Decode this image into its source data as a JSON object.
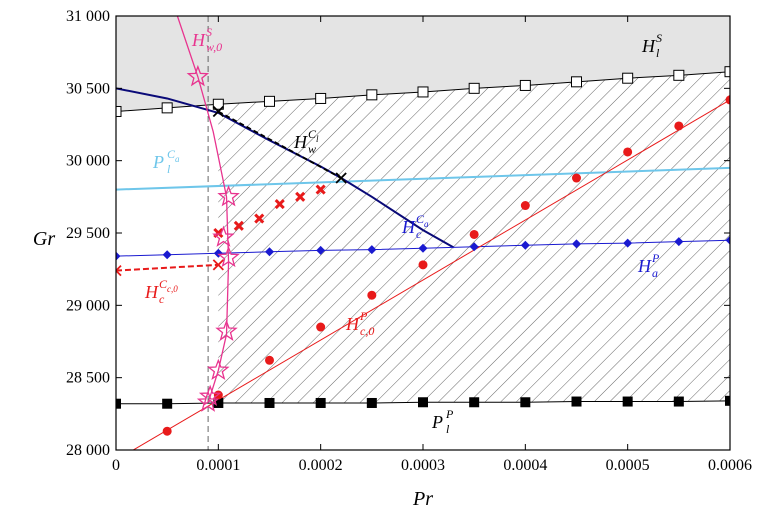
{
  "chart_data": {
    "type": "line",
    "xlabel": "Pr",
    "ylabel": "Gr",
    "xlim": [
      0,
      0.0006
    ],
    "ylim": [
      28000,
      31000
    ],
    "x_ticks": [
      0,
      0.0001,
      0.0002,
      0.0003,
      0.0004,
      0.0005,
      0.0006
    ],
    "x_tick_labels": [
      "0",
      "0.0001",
      "0.0002",
      "0.0003",
      "0.0004",
      "0.0005",
      "0.0006"
    ],
    "y_ticks": [
      28000,
      28500,
      29000,
      29500,
      30000,
      30500,
      31000
    ],
    "y_tick_labels": [
      "28 000",
      "28 500",
      "29 000",
      "29 500",
      "30 000",
      "30 500",
      "31 000"
    ],
    "grid": false,
    "legend": "none",
    "reference_line_x": 9e-05,
    "colors": {
      "pink": "#e8348f",
      "red": "#e81a1a",
      "blue": "#1a1ad0",
      "navy": "#0a0a78",
      "lightblue": "#6ec6ea",
      "black": "#000000",
      "shade": "#e4e4e4"
    },
    "annotations": {
      "HlS": {
        "main": "H",
        "sup": "S",
        "sub": "l"
      },
      "HwS0": {
        "main": "H",
        "sup": "S",
        "sub": "w,0"
      },
      "HwCl": {
        "main": "H",
        "sup": "C",
        "sup_sub": "l",
        "sub": "w"
      },
      "PlCa": {
        "main": "P",
        "sup": "C",
        "sup_sub": "a",
        "sub": "l"
      },
      "HcCa": {
        "main": "H",
        "sup": "C",
        "sup_sub": "a",
        "sub": "c"
      },
      "HaP": {
        "main": "H",
        "sup": "P",
        "sub": "a"
      },
      "HcCc0": {
        "main": "H",
        "sup": "C",
        "sup_sub": "c,0",
        "sub": "c"
      },
      "Hc0P": {
        "main": "H",
        "sup": "P",
        "sub": "c,0"
      },
      "PlP": {
        "main": "P",
        "sup": "P",
        "sub": "l"
      }
    },
    "series": [
      {
        "key": "HlS",
        "marker": "open-square",
        "color": "#000000",
        "x": [
          0,
          5e-05,
          0.0001,
          0.00015,
          0.0002,
          0.00025,
          0.0003,
          0.00035,
          0.0004,
          0.00045,
          0.0005,
          0.00055,
          0.0006
        ],
        "y": [
          30340,
          30365,
          30390,
          30410,
          30430,
          30455,
          30475,
          30500,
          30520,
          30545,
          30570,
          30590,
          30615
        ]
      },
      {
        "key": "HwS0",
        "marker": "open-star",
        "color": "#e8348f",
        "x": [
          8e-05,
          0.00011,
          0.000105,
          0.00011,
          0.000108,
          0.0001,
          9.2e-05,
          9e-05
        ],
        "y": [
          30580,
          29750,
          29470,
          29330,
          28820,
          28550,
          28370,
          28330
        ],
        "curve_x": [
          6e-05,
          8e-05,
          9.5e-05,
          0.000108,
          0.00011,
          0.000108,
          0.0001,
          9.2e-05,
          9e-05
        ],
        "curve_y": [
          31000,
          30580,
          30200,
          29750,
          29300,
          28800,
          28550,
          28370,
          28330
        ]
      },
      {
        "key": "HwCl",
        "marker": "cross-dashed",
        "color": "#000000",
        "x": [
          0.0001,
          0.00022
        ],
        "y": [
          30340,
          29880
        ]
      },
      {
        "key": "PlCa",
        "marker": "none",
        "color": "#6ec6ea",
        "x": [
          0,
          0.0006
        ],
        "y": [
          29800,
          29950
        ]
      },
      {
        "key": "HcCa",
        "marker": "none",
        "color": "#0a0a78",
        "x": [
          0,
          5e-05,
          0.0001,
          0.00015,
          0.0002,
          0.00022,
          0.00025,
          0.0003,
          0.00033
        ],
        "y": [
          30500,
          30430,
          30330,
          30140,
          29960,
          29880,
          29750,
          29520,
          29400
        ]
      },
      {
        "key": "HaP",
        "marker": "filled-diamond",
        "color": "#1a1ad0",
        "x": [
          0,
          5e-05,
          0.0001,
          0.00015,
          0.0002,
          0.00025,
          0.0003,
          0.00035,
          0.0004,
          0.00045,
          0.0005,
          0.00055,
          0.0006
        ],
        "y": [
          29340,
          29350,
          29360,
          29370,
          29380,
          29385,
          29395,
          29405,
          29415,
          29425,
          29430,
          29440,
          29450
        ]
      },
      {
        "key": "HcCc0",
        "marker": "cross-dashed",
        "color": "#e81a1a",
        "x": [
          0,
          0.0001
        ],
        "y": [
          29240,
          29280
        ]
      },
      {
        "key": "HcCc0_points",
        "marker": "bold-cross",
        "color": "#e81a1a",
        "x": [
          0.0001,
          0.00012,
          0.00014,
          0.00016,
          0.00018,
          0.0002
        ],
        "y": [
          29500,
          29550,
          29600,
          29700,
          29750,
          29800
        ]
      },
      {
        "key": "Hc0P",
        "marker": "filled-circle",
        "color": "#e81a1a",
        "x": [
          5e-05,
          0.0001,
          0.00015,
          0.0002,
          0.00025,
          0.0003,
          0.00035,
          0.0004,
          0.00045,
          0.0005,
          0.00055,
          0.0006
        ],
        "y": [
          28130,
          28380,
          28620,
          28850,
          29070,
          29280,
          29490,
          29690,
          29880,
          30060,
          30240,
          30420
        ],
        "line_x": [
          0,
          0.0006
        ],
        "line_y": [
          27930,
          30420
        ]
      },
      {
        "key": "PlP",
        "marker": "filled-square",
        "color": "#000000",
        "x": [
          0,
          5e-05,
          0.0001,
          0.00015,
          0.0002,
          0.00025,
          0.0003,
          0.00035,
          0.0004,
          0.00045,
          0.0005,
          0.00055,
          0.0006
        ],
        "y": [
          28320,
          28320,
          28325,
          28325,
          28325,
          28325,
          28330,
          28330,
          28330,
          28335,
          28335,
          28335,
          28340
        ]
      }
    ]
  }
}
